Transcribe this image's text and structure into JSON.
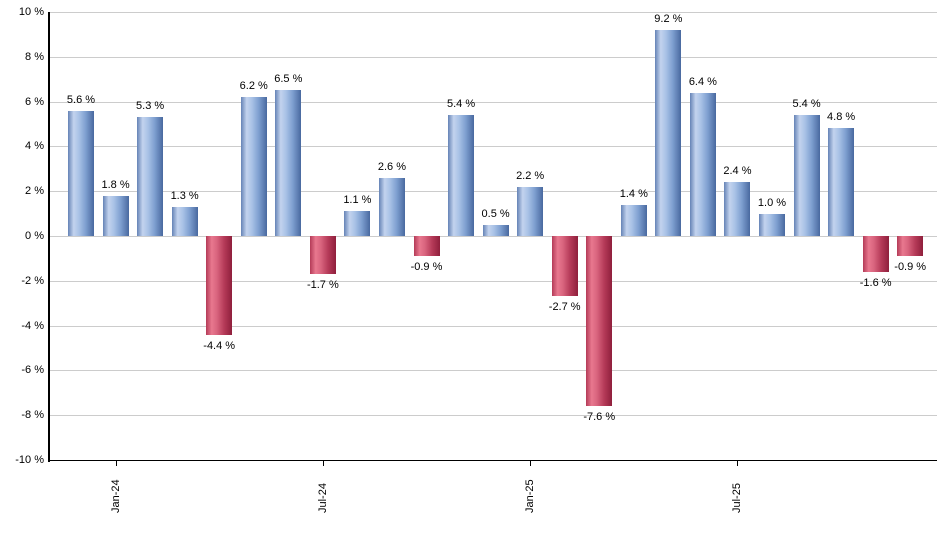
{
  "chart": {
    "background": "#ffffff",
    "grid_color": "#cccccc",
    "axis_color": "#000000",
    "text_color": "#000000"
  },
  "chart_data": {
    "type": "bar",
    "title": "",
    "xlabel": "",
    "ylabel": "",
    "grid": true,
    "legend": false,
    "values": [
      5.6,
      1.8,
      5.3,
      1.3,
      -4.4,
      6.2,
      6.5,
      -1.7,
      1.1,
      2.6,
      -0.9,
      5.4,
      0.5,
      2.2,
      -2.7,
      -7.6,
      1.4,
      9.2,
      6.4,
      2.4,
      1.0,
      5.4,
      4.8,
      -1.6,
      -0.9
    ],
    "bar_labels": [
      "5.6 %",
      "1.8 %",
      "5.3 %",
      "1.3 %",
      "-4.4 %",
      "6.2 %",
      "6.5 %",
      "-1.7 %",
      "1.1 %",
      "2.6 %",
      "-0.9 %",
      "5.4 %",
      "0.5 %",
      "2.2 %",
      "-2.7 %",
      "-7.6 %",
      "1.4 %",
      "9.2 %",
      "6.4 %",
      "2.4 %",
      "1.0 %",
      "5.4 %",
      "4.8 %",
      "-1.6 %",
      "-0.9 %"
    ],
    "y_axis": {
      "min": -10,
      "max": 10,
      "step": 2
    },
    "y_tick_labels": [
      "10 %",
      "8 %",
      "6 %",
      "4 %",
      "2 %",
      "0 %",
      "-2 %",
      "-4 %",
      "-6 %",
      "-8 %",
      "-10 %"
    ],
    "x_ticks": [
      {
        "label": "Jan-24",
        "bar_index": 1
      },
      {
        "label": "Jul-24",
        "bar_index": 7
      },
      {
        "label": "Jan-25",
        "bar_index": 13
      },
      {
        "label": "Jul-25",
        "bar_index": 19
      }
    ],
    "positive_color": "#7ba1d7",
    "negative_color": "#c84a68"
  }
}
